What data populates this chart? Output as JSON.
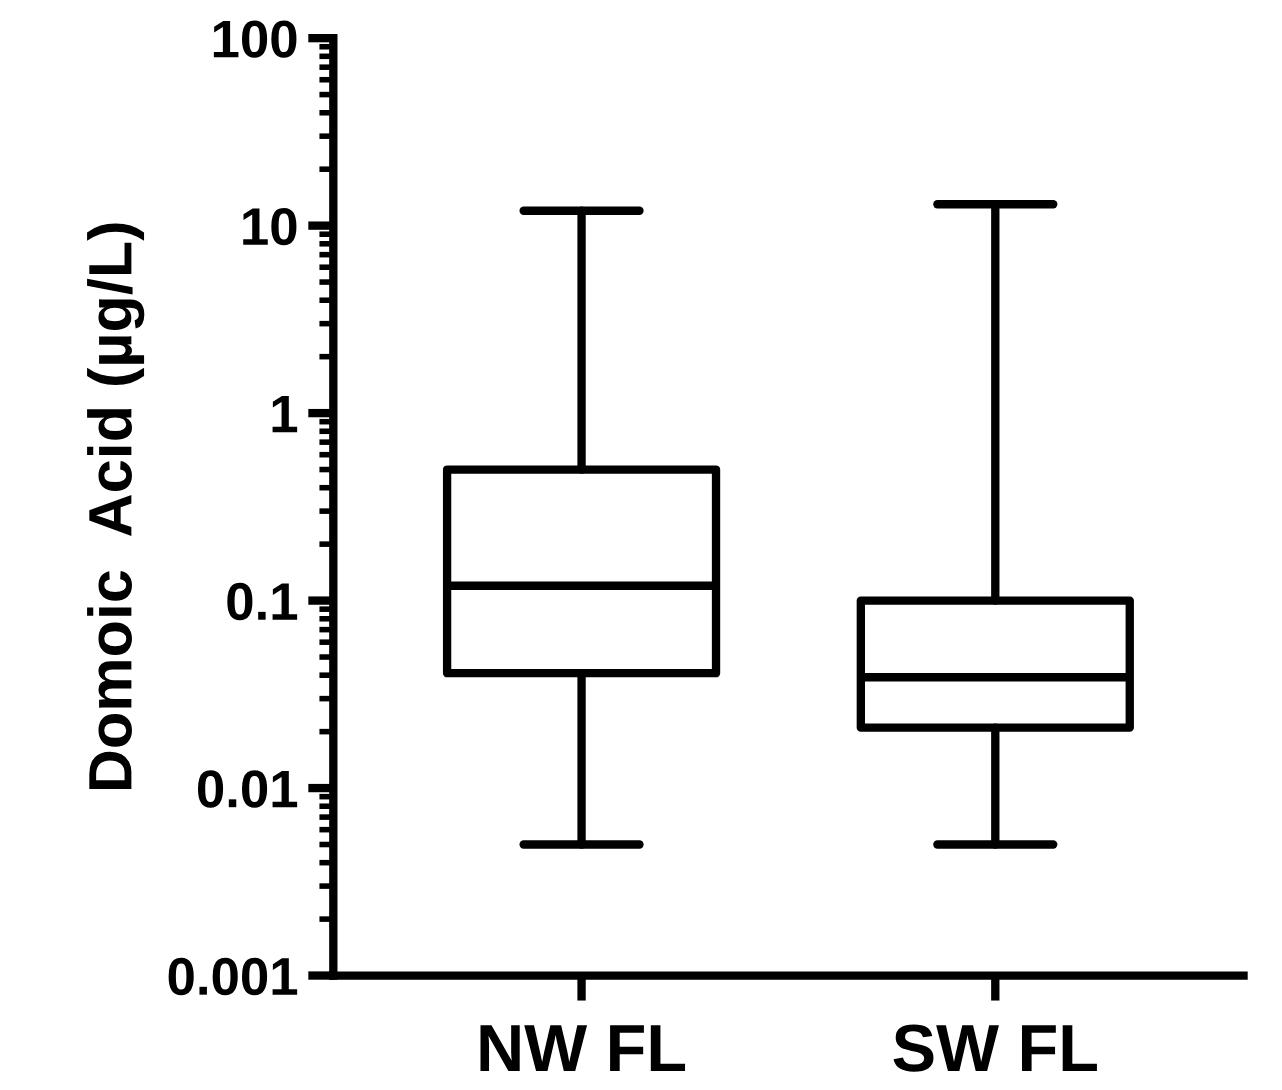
{
  "chart_data": {
    "type": "box",
    "ylabel": "Domoic  Acid (µg/L)",
    "categories": [
      "NW FL",
      "SW FL"
    ],
    "boxes": [
      {
        "low": 0.005,
        "q1": 0.041,
        "median": 0.12,
        "q3": 0.5,
        "high": 12
      },
      {
        "low": 0.005,
        "q1": 0.021,
        "median": 0.039,
        "q3": 0.1,
        "high": 13
      }
    ],
    "log": true,
    "ylim": [
      0.001,
      100
    ],
    "yticks": [
      0.001,
      0.01,
      0.1,
      1,
      10,
      100
    ],
    "grid": false
  }
}
